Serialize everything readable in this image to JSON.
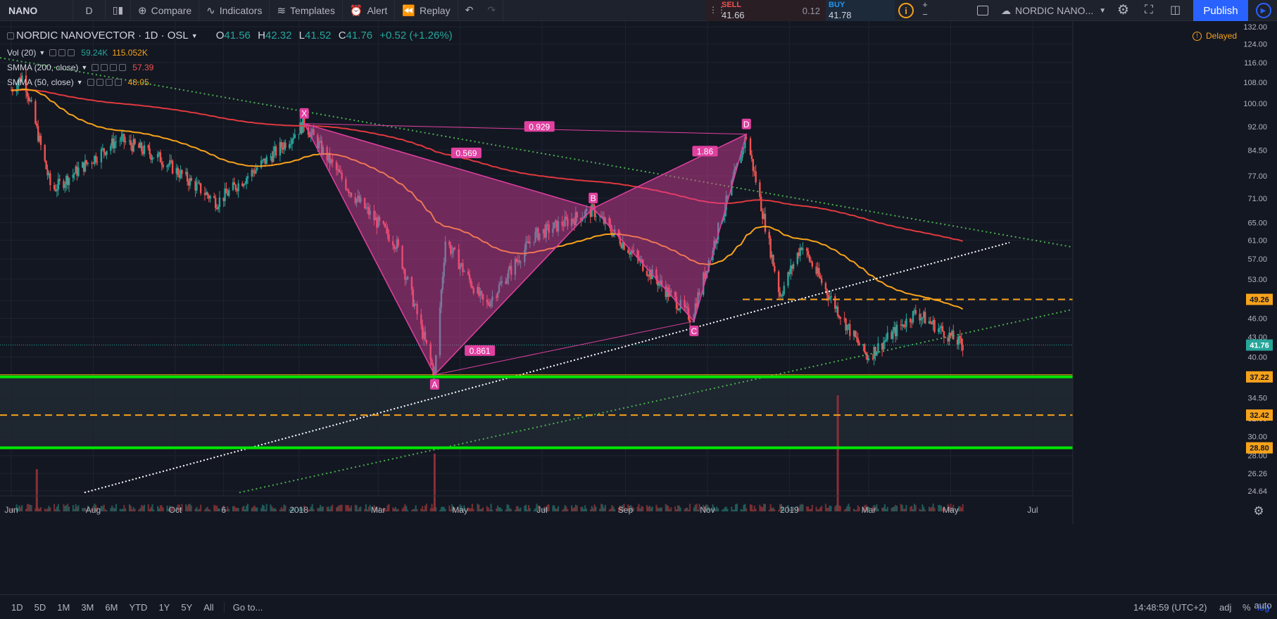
{
  "toolbar": {
    "symbol": "NANO",
    "interval": "D",
    "compare": "Compare",
    "indicators": "Indicators",
    "templates": "Templates",
    "alert": "Alert",
    "replay": "Replay",
    "sell_label": "SELL",
    "sell_price": "41.66",
    "spread": "0.12",
    "buy_label": "BUY",
    "buy_price": "41.78",
    "layout_name": "NORDIC NANO...",
    "publish": "Publish"
  },
  "legend": {
    "title": "NORDIC NANOVECTOR · 1D · OSL",
    "o_label": "O",
    "o": "41.56",
    "h_label": "H",
    "h": "42.32",
    "l_label": "L",
    "l": "41.52",
    "c_label": "C",
    "c": "41.76",
    "change": "+0.52 (+1.26%)",
    "vol_label": "Vol (20)",
    "vol_v1": "59.24K",
    "vol_v2": "115.052K",
    "smma200_label": "SMMA (200, close)",
    "smma200_value": "57.39",
    "smma50_label": "SMMA (50, close)",
    "smma50_value": "48.05",
    "delayed": "Delayed"
  },
  "bottom": {
    "ranges": [
      "1D",
      "5D",
      "1M",
      "3M",
      "6M",
      "YTD",
      "1Y",
      "5Y",
      "All"
    ],
    "goto": "Go to...",
    "time": "14:48:59 (UTC+2)",
    "adj": "adj",
    "pct": "%",
    "log": "log",
    "auto": "auto"
  },
  "colors": {
    "background": "#131722",
    "up": "#26a69a",
    "down": "#ef5350",
    "smma200": "#e0393e",
    "smma50": "#f7a21b",
    "pattern": "#e040a0",
    "support_green": "#00e600",
    "dashed_orange": "#f7a21b",
    "trend_green": "#4caf50",
    "trend_white": "#ffffff"
  },
  "chart_data": {
    "type": "candlestick",
    "symbol": "NORDIC NANOVECTOR",
    "timeframe": "1D",
    "scale": "log",
    "x_ticks": [
      "Jun",
      "Aug",
      "Oct",
      "6",
      "2018",
      "Mar",
      "May",
      "Jul",
      "Sep",
      "Nov",
      "2019",
      "Mar",
      "May",
      "Jul"
    ],
    "y_ticks": [
      24.64,
      26.26,
      28.0,
      30.0,
      32.0,
      34.5,
      37.0,
      40.0,
      43.0,
      46.0,
      49.0,
      53.0,
      57.0,
      61.0,
      65.0,
      71.0,
      77.0,
      84.5,
      92.0,
      100.0,
      108.0,
      116.0,
      124.0,
      132.0
    ],
    "ylim": [
      24.0,
      133.0
    ],
    "last_price": 41.76,
    "price_key_points": [
      {
        "date": "2017-06-01",
        "price": 105
      },
      {
        "date": "2017-06-10",
        "price": 111
      },
      {
        "date": "2017-07-01",
        "price": 73
      },
      {
        "date": "2017-08-20",
        "price": 88
      },
      {
        "date": "2017-09-20",
        "price": 82
      },
      {
        "date": "2017-11-01",
        "price": 70
      },
      {
        "date": "2017-12-15",
        "price": 84
      },
      {
        "date": "2018-01-05",
        "price": 93
      },
      {
        "date": "2018-02-10",
        "price": 72
      },
      {
        "date": "2018-03-15",
        "price": 60
      },
      {
        "date": "2018-04-12",
        "price": 37.5
      },
      {
        "date": "2018-04-20",
        "price": 61
      },
      {
        "date": "2018-05-20",
        "price": 48
      },
      {
        "date": "2018-06-25",
        "price": 62
      },
      {
        "date": "2018-08-08",
        "price": 68
      },
      {
        "date": "2018-10-20",
        "price": 46
      },
      {
        "date": "2018-11-30",
        "price": 89
      },
      {
        "date": "2018-12-25",
        "price": 50
      },
      {
        "date": "2019-01-10",
        "price": 60
      },
      {
        "date": "2019-01-28",
        "price": 51
      },
      {
        "date": "2019-02-15",
        "price": 44
      },
      {
        "date": "2019-02-28",
        "price": 40
      },
      {
        "date": "2019-04-05",
        "price": 47
      },
      {
        "date": "2019-05-10",
        "price": 41.76
      }
    ],
    "volume_spikes": [
      {
        "date": "2017-06-20",
        "volume": "high"
      },
      {
        "date": "2018-04-12",
        "volume": "very high"
      },
      {
        "date": "2019-02-06",
        "volume": "extreme"
      }
    ],
    "indicators": [
      {
        "name": "SMMA (200, close)",
        "last": 57.39
      },
      {
        "name": "SMMA (50, close)",
        "last": 48.05
      },
      {
        "name": "Vol (20)",
        "values": [
          "59.24K",
          "115.052K"
        ]
      }
    ],
    "horizontal_levels": [
      {
        "price": 49.26,
        "style": "dashed",
        "color": "orange"
      },
      {
        "price": 37.22,
        "style": "solid",
        "color": "green"
      },
      {
        "price": 32.42,
        "style": "dashed",
        "color": "orange"
      },
      {
        "price": 28.8,
        "style": "solid",
        "color": "green"
      }
    ],
    "harmonic_pattern": {
      "points": [
        {
          "label": "X",
          "date": "2018-01-05",
          "price": 93
        },
        {
          "label": "A",
          "date": "2018-04-12",
          "price": 37.5
        },
        {
          "label": "B",
          "date": "2018-08-08",
          "price": 68.5
        },
        {
          "label": "C",
          "date": "2018-10-22",
          "price": 45.5
        },
        {
          "label": "D",
          "date": "2018-11-30",
          "price": 89.5
        }
      ],
      "ratios": [
        {
          "label": "0.569",
          "between": "XA-AB"
        },
        {
          "label": "0.929",
          "between": "XD"
        },
        {
          "label": "1.86",
          "between": "BC-CD"
        },
        {
          "label": "0.861",
          "between": "AC"
        }
      ]
    }
  }
}
